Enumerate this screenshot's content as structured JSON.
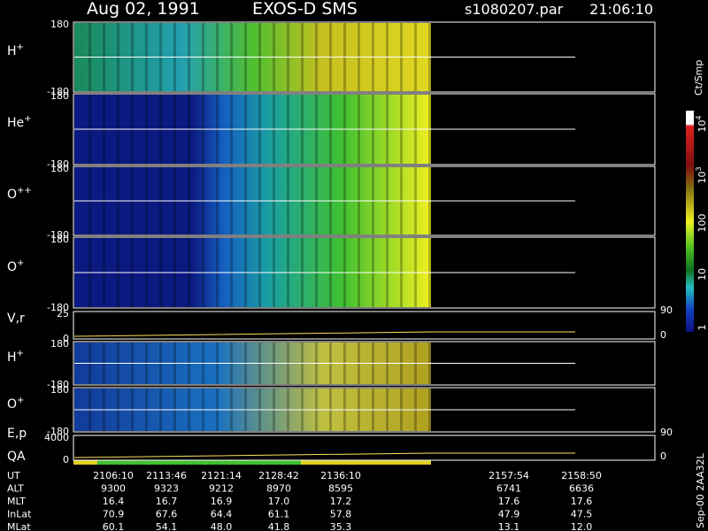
{
  "header": {
    "date": "Aug 02, 1991",
    "instrument": "EXOS-D SMS",
    "file": "s1080207.par",
    "time": "21:06:10"
  },
  "panels": [
    {
      "label": "H",
      "charge": "+",
      "ticks": [
        "180",
        "-180"
      ]
    },
    {
      "label": "He",
      "charge": "+",
      "ticks": [
        "180",
        "-180"
      ]
    },
    {
      "label": "O",
      "charge": "++",
      "ticks": [
        "180",
        "-180"
      ]
    },
    {
      "label": "O",
      "charge": "+",
      "ticks": [
        "180",
        "-180"
      ]
    },
    {
      "label": "V,r",
      "ticks": [
        "25",
        "0"
      ],
      "right_ticks": [
        "90",
        "0"
      ]
    },
    {
      "label": "H",
      "charge": "+",
      "ticks": [
        "180",
        "-180"
      ]
    },
    {
      "label": "O",
      "charge": "+",
      "ticks": [
        "180",
        "-180"
      ],
      "right_ticks": [
        "90"
      ]
    },
    {
      "label": "E,p",
      "label2": "QA",
      "ticks": [
        "4000",
        "0"
      ],
      "right_ticks": [
        "0"
      ]
    }
  ],
  "colorbar": {
    "unit": "Ct/Smp",
    "labels": [
      {
        "base": "10",
        "exp": "4"
      },
      {
        "base": "10",
        "exp": "3"
      },
      {
        "base": "100"
      },
      {
        "base": "10"
      },
      {
        "base": "1"
      }
    ]
  },
  "table": {
    "rows": [
      {
        "label": "UT",
        "values": [
          "2106:10",
          "2113:46",
          "2121:14",
          "2128:42",
          "2136:10",
          "2157:54",
          "2158:50"
        ]
      },
      {
        "label": "ALT",
        "values": [
          "9300",
          "9323",
          "9212",
          "8970",
          "8595",
          "6741",
          "6636"
        ]
      },
      {
        "label": "MLT",
        "values": [
          "16.4",
          "16.7",
          "16.9",
          "17.0",
          "17.2",
          "17.6",
          "17.6"
        ]
      },
      {
        "label": "InLat",
        "values": [
          "70.9",
          "67.6",
          "64.4",
          "61.1",
          "57.8",
          "47.9",
          "47.5"
        ]
      },
      {
        "label": "MLat",
        "values": [
          "60.1",
          "54.1",
          "48.0",
          "41.8",
          "35.3",
          "13.1",
          "12.0"
        ]
      }
    ]
  },
  "footer": "Sep-00 2AA32L"
}
